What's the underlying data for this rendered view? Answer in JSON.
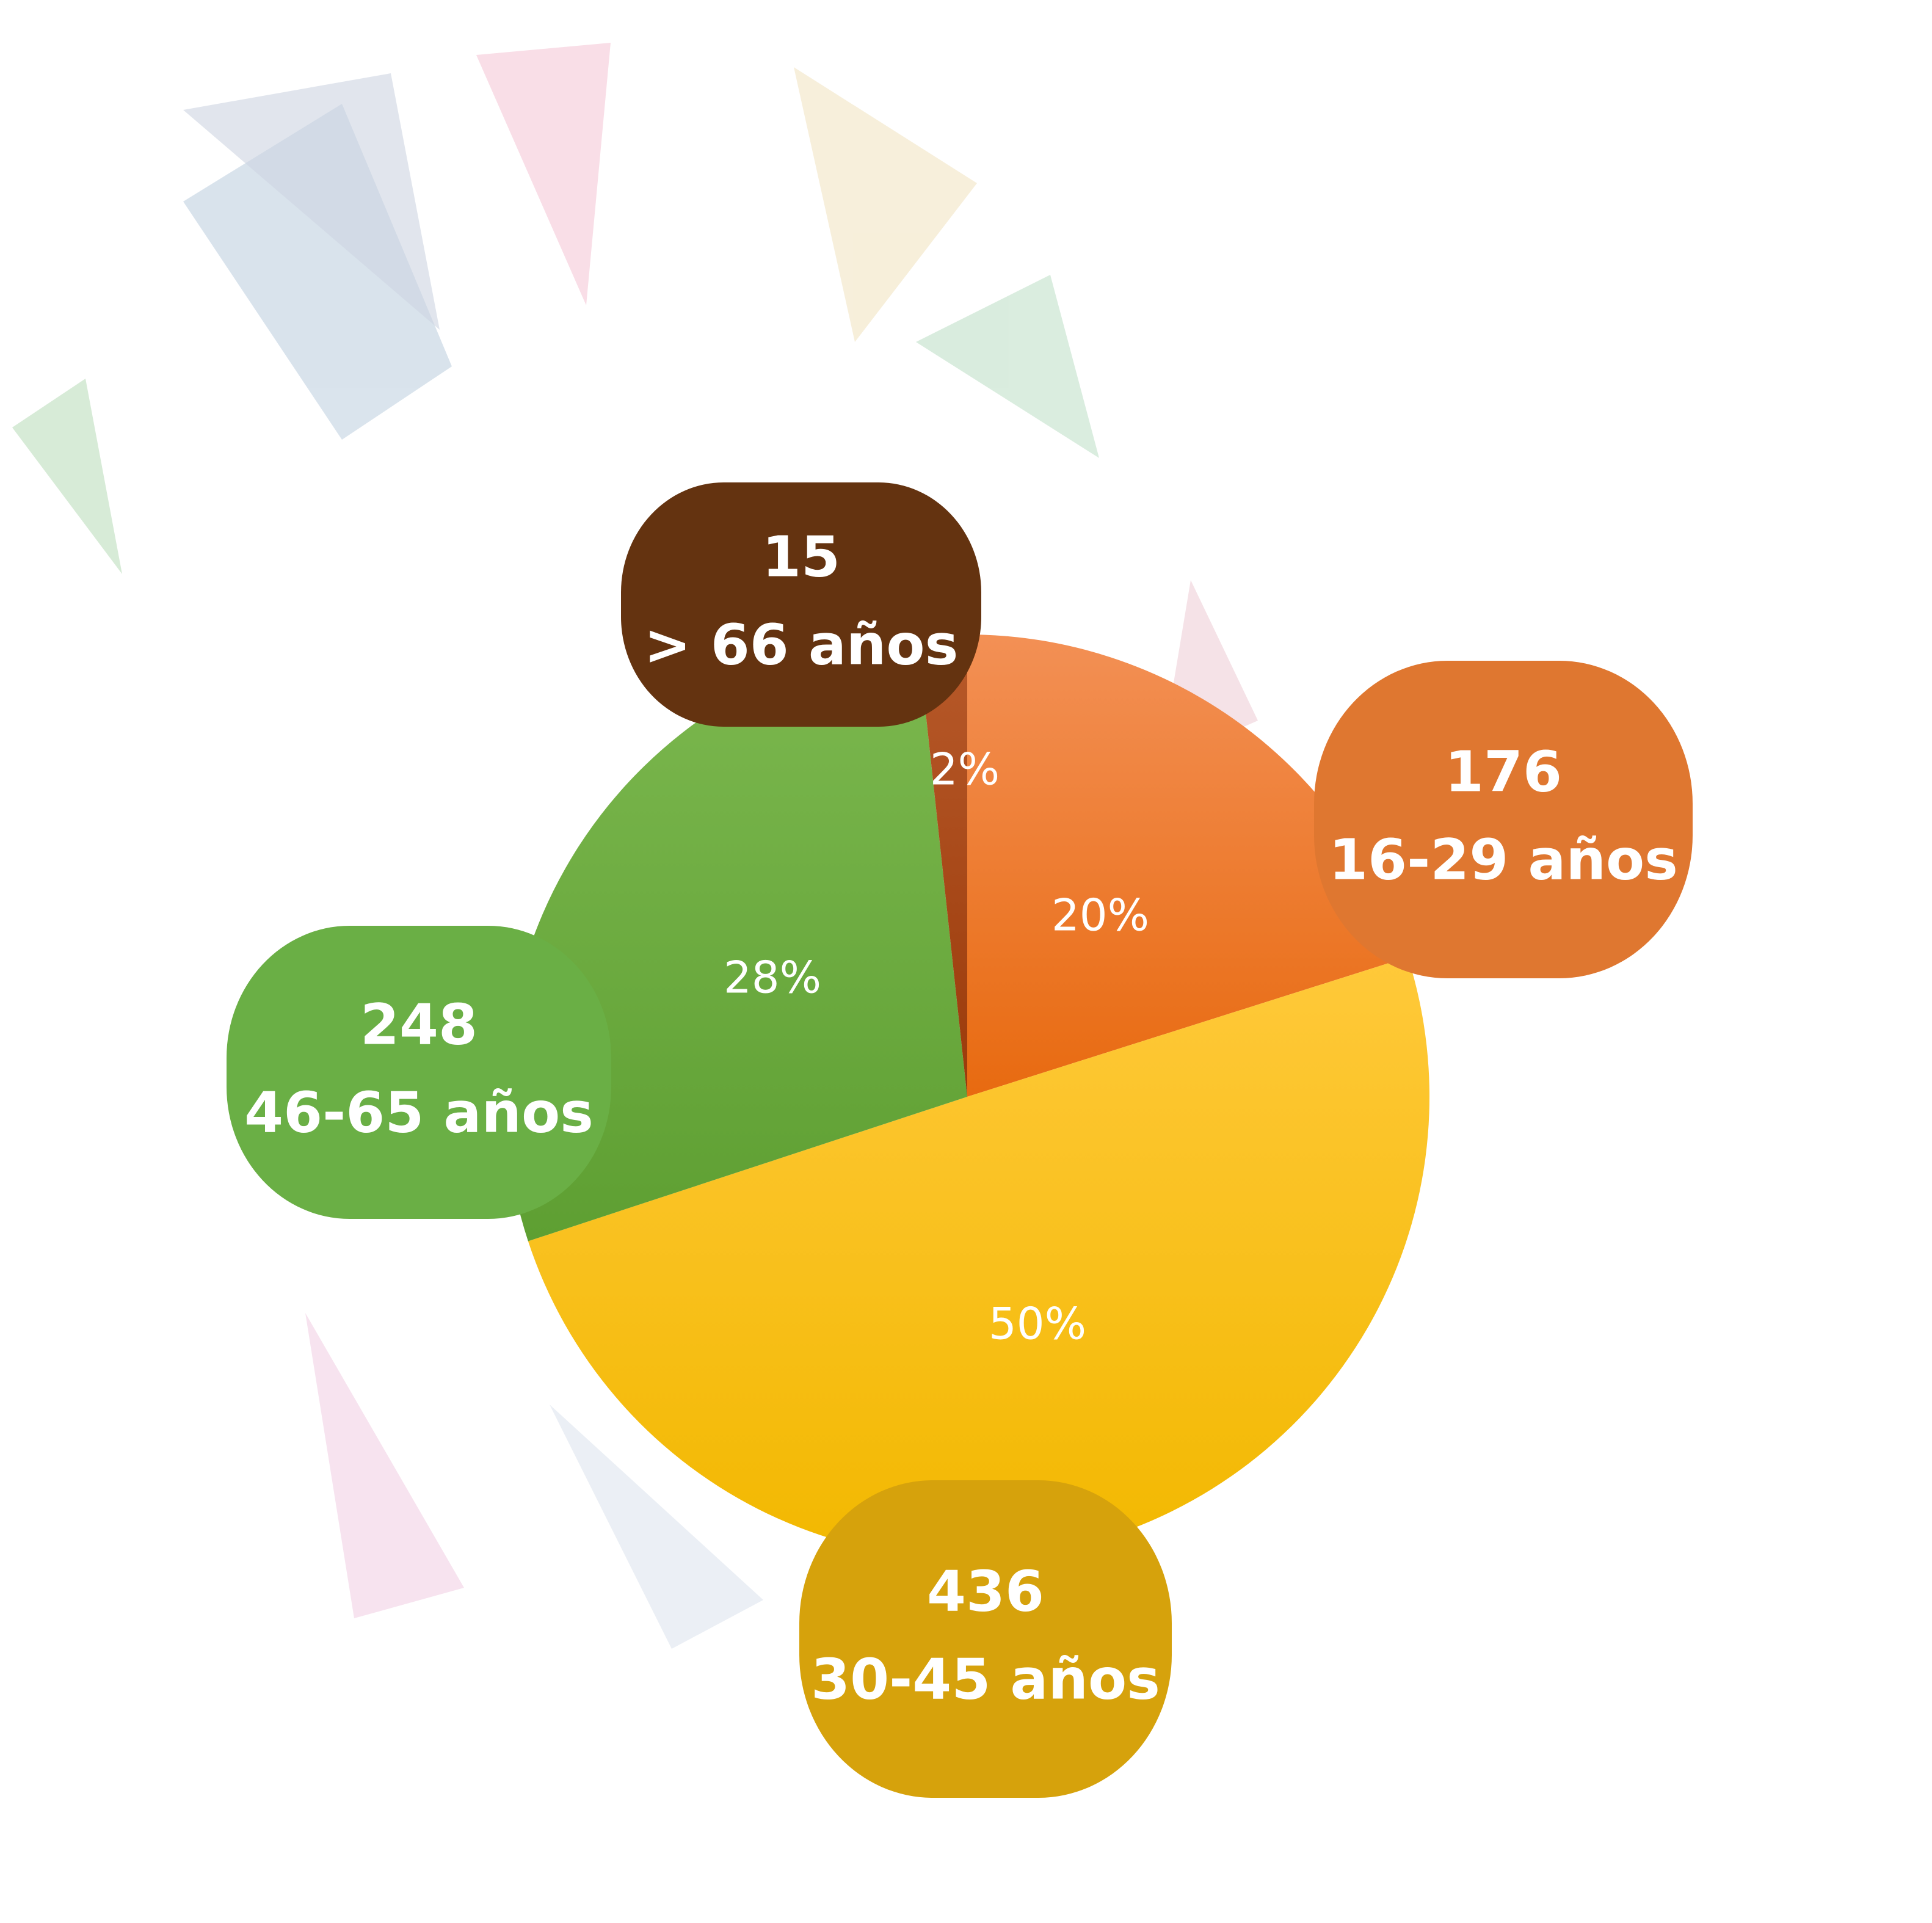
{
  "chart_data": {
    "type": "pie",
    "categories": [
      "16-29 años",
      "30-45 años",
      "46-65 años",
      "> 66 años"
    ],
    "values": [
      176,
      436,
      248,
      15
    ],
    "percent_values": [
      20,
      50,
      28,
      2
    ],
    "percent_labels": [
      "20%",
      "50%",
      "28%",
      "2%"
    ],
    "colors": [
      "#f07f2e",
      "#fbc31c",
      "#6aad3f",
      "#a8481a"
    ],
    "bubble_colors": [
      "#df7730",
      "#d6a20c",
      "#6aaf45",
      "#643310"
    ]
  }
}
